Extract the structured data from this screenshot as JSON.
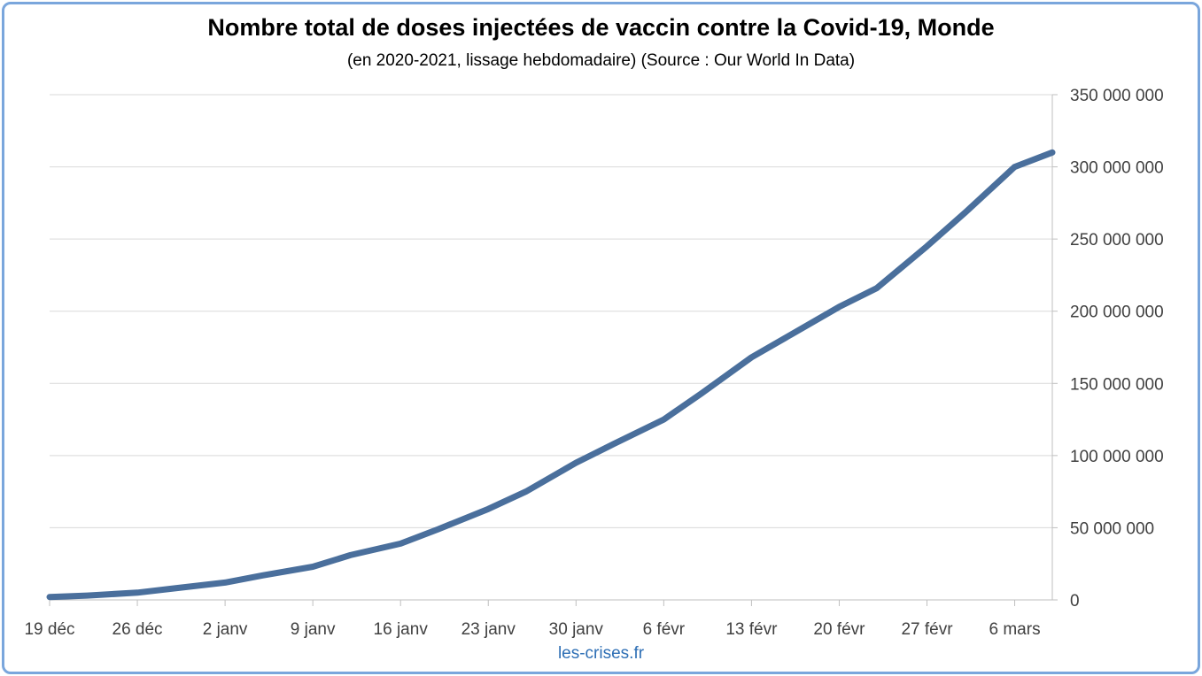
{
  "chart_data": {
    "type": "line",
    "title": "Nombre total de doses injectées de vaccin contre la Covid-19, Monde",
    "subtitle": "(en 2020-2021, lissage hebdomadaire) (Source : Our World In Data)",
    "xlabel": "",
    "ylabel": "",
    "x": [
      "2020-12-19",
      "2020-12-22",
      "2020-12-26",
      "2020-12-29",
      "2021-01-02",
      "2021-01-05",
      "2021-01-09",
      "2021-01-12",
      "2021-01-16",
      "2021-01-19",
      "2021-01-23",
      "2021-01-26",
      "2021-01-30",
      "2021-02-02",
      "2021-02-06",
      "2021-02-09",
      "2021-02-13",
      "2021-02-16",
      "2021-02-20",
      "2021-02-23",
      "2021-02-27",
      "2021-03-02",
      "2021-03-06",
      "2021-03-09"
    ],
    "series": [
      {
        "values": [
          2000000,
          3000000,
          5000000,
          8000000,
          12000000,
          17000000,
          23000000,
          31000000,
          39000000,
          49000000,
          63000000,
          75000000,
          95000000,
          108000000,
          125000000,
          143000000,
          168000000,
          183000000,
          203000000,
          216000000,
          245000000,
          268000000,
          300000000,
          310000000
        ]
      }
    ],
    "x_ticks": [
      "19 déc",
      "26 déc",
      "2 janv",
      "9 janv",
      "16 janv",
      "23 janv",
      "30 janv",
      "6 févr",
      "13 févr",
      "20 févr",
      "27 févr",
      "6 mars"
    ],
    "y_ticks": [
      "350 000 000",
      "300 000 000",
      "250 000 000",
      "200 000 000",
      "150 000 000",
      "100 000 000",
      "50 000 000",
      "0"
    ],
    "ylim": [
      0,
      350000000
    ],
    "xlim": [
      "2020-12-19",
      "2021-03-09"
    ],
    "y_axis_side": "right",
    "grid": "horizontal",
    "legend": "none",
    "line_color": "#4a6f9c"
  },
  "credit": "les-crises.fr"
}
